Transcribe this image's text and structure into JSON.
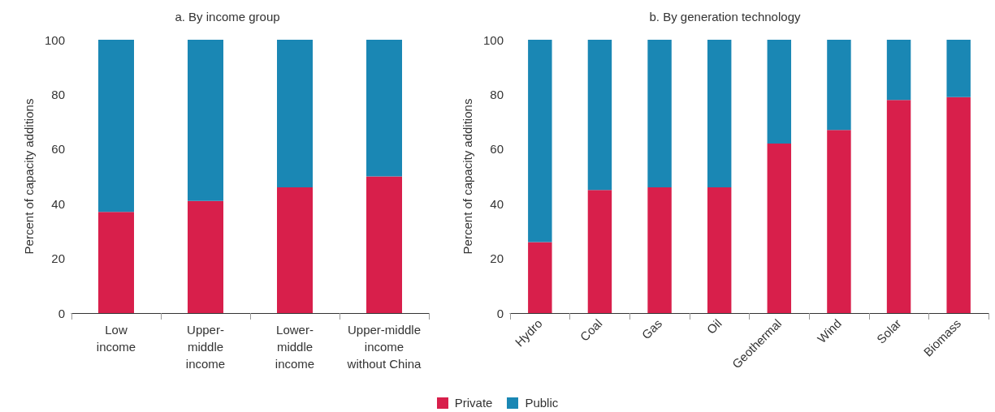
{
  "chart_data": [
    {
      "type": "bar",
      "title": "a. By income group",
      "ylabel": "Percent of capacity additions",
      "categories": [
        "Low\nincome",
        "Upper-\nmiddle\nincome",
        "Lower-\nmiddle\nincome",
        "Upper-middle\nincome\nwithout China"
      ],
      "stacked": true,
      "ylim": [
        0,
        100
      ],
      "yticks": [
        0,
        20,
        40,
        60,
        80,
        100
      ],
      "grid": false,
      "legend": "bottom",
      "series": [
        {
          "name": "Private",
          "color": "#d81f4b",
          "values": [
            37,
            41,
            46,
            50
          ]
        },
        {
          "name": "Public",
          "color": "#1a87b4",
          "values": [
            63,
            59,
            54,
            50
          ]
        }
      ]
    },
    {
      "type": "bar",
      "title": "b. By generation technology",
      "ylabel": "Percent of capacity additions",
      "categories": [
        "Hydro",
        "Coal",
        "Gas",
        "Oil",
        "Geothermal",
        "Wind",
        "Solar",
        "Biomass"
      ],
      "stacked": true,
      "ylim": [
        0,
        100
      ],
      "yticks": [
        0,
        20,
        40,
        60,
        80,
        100
      ],
      "grid": false,
      "legend": "bottom",
      "series": [
        {
          "name": "Private",
          "color": "#d81f4b",
          "values": [
            26,
            45,
            46,
            46,
            62,
            67,
            78,
            79
          ]
        },
        {
          "name": "Public",
          "color": "#1a87b4",
          "values": [
            74,
            55,
            54,
            54,
            38,
            33,
            22,
            21
          ]
        }
      ]
    }
  ]
}
